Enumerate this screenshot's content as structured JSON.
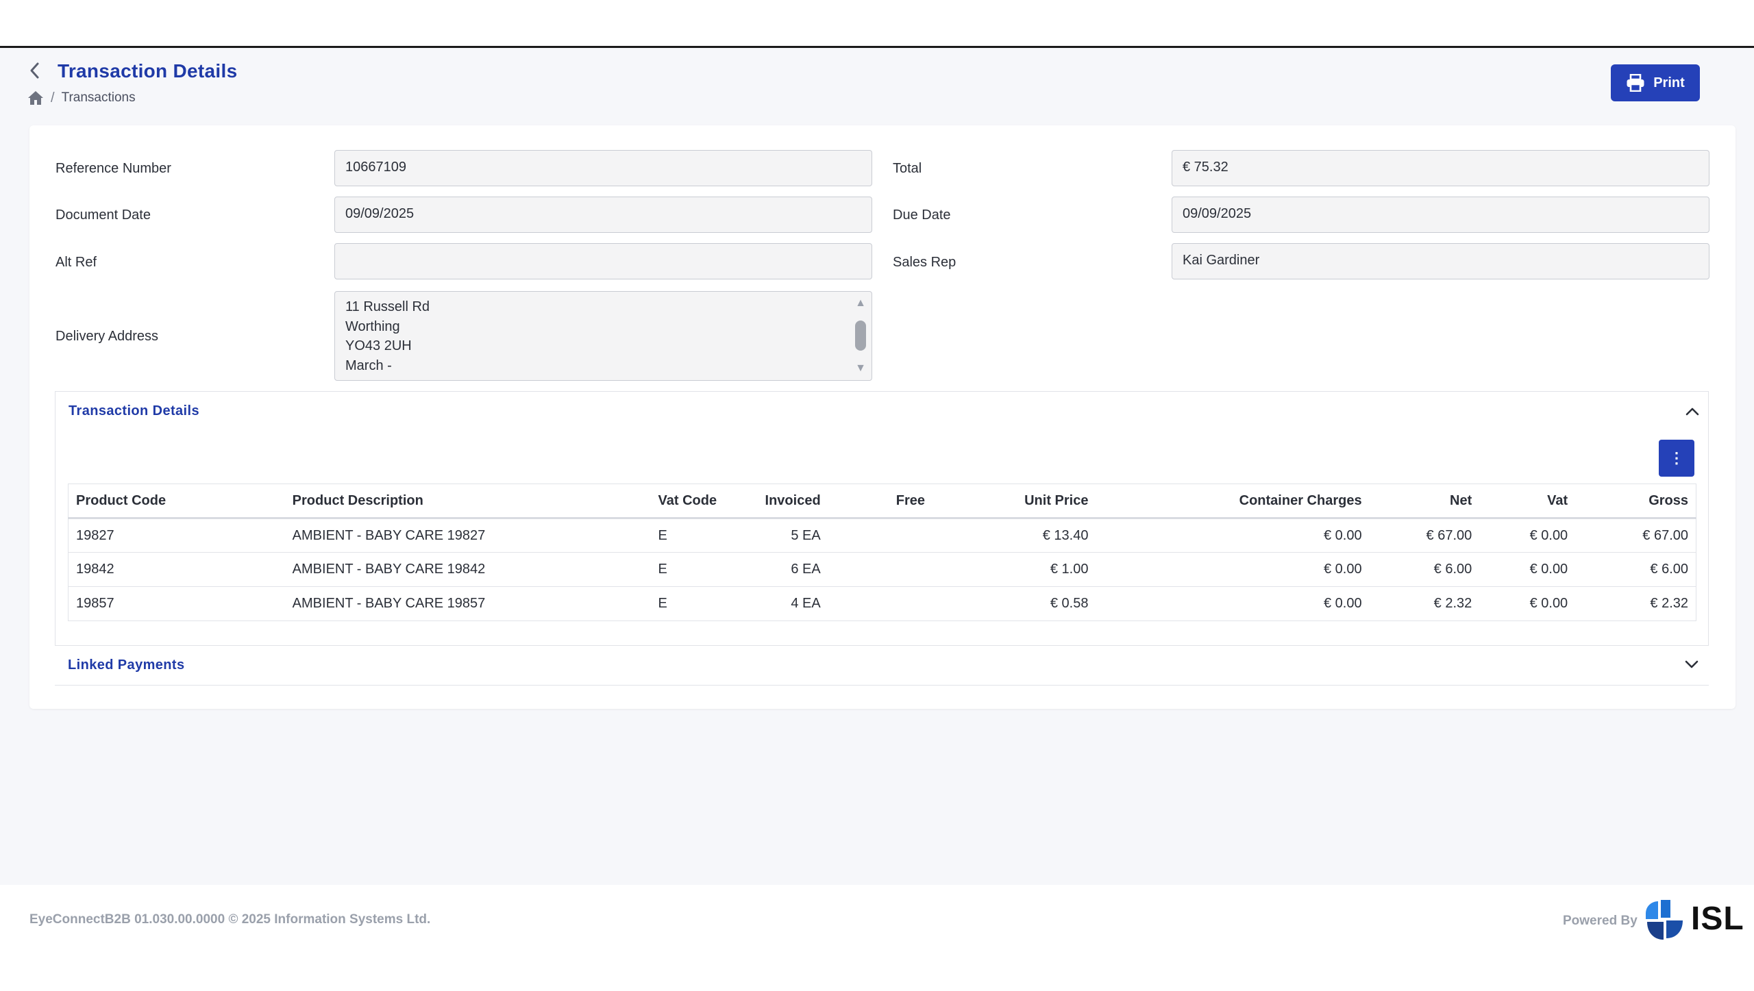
{
  "header": {
    "title": "Transaction Details",
    "breadcrumb": [
      "Transactions"
    ],
    "print_label": "Print"
  },
  "form": {
    "reference_number": {
      "label": "Reference Number",
      "value": "10667109"
    },
    "document_date": {
      "label": "Document Date",
      "value": "09/09/2025"
    },
    "alt_ref": {
      "label": "Alt Ref",
      "value": ""
    },
    "delivery_address": {
      "label": "Delivery Address",
      "lines": [
        "11 Russell Rd",
        "Worthing",
        "YO43 2UH",
        "March -"
      ]
    },
    "total": {
      "label": "Total",
      "value": "€ 75.32"
    },
    "due_date": {
      "label": "Due Date",
      "value": "09/09/2025"
    },
    "sales_rep": {
      "label": "Sales Rep",
      "value": "Kai Gardiner"
    }
  },
  "transaction_panel": {
    "title": "Transaction Details",
    "columns": [
      "Product Code",
      "Product Description",
      "Vat Code",
      "Invoiced",
      "Free",
      "Unit Price",
      "Container Charges",
      "Net",
      "Vat",
      "Gross"
    ],
    "rows": [
      [
        "19827",
        "AMBIENT - BABY CARE 19827",
        "E",
        "5 EA",
        "",
        "€ 13.40",
        "€ 0.00",
        "€ 67.00",
        "€ 0.00",
        "€ 67.00"
      ],
      [
        "19842",
        "AMBIENT - BABY CARE 19842",
        "E",
        "6 EA",
        "",
        "€ 1.00",
        "€ 0.00",
        "€ 6.00",
        "€ 0.00",
        "€ 6.00"
      ],
      [
        "19857",
        "AMBIENT - BABY CARE 19857",
        "E",
        "4 EA",
        "",
        "€ 0.58",
        "€ 0.00",
        "€ 2.32",
        "€ 0.00",
        "€ 2.32"
      ]
    ]
  },
  "linked_panel": {
    "title": "Linked Payments"
  },
  "footer": {
    "copyright": "EyeConnectB2B 01.030.00.0000 © 2025 Information Systems Ltd.",
    "powered_by": "Powered By",
    "logo_text": "ISL"
  },
  "colors": {
    "accent": "#2541b8",
    "title": "#1f3aa7",
    "background": "#f6f7fa"
  }
}
